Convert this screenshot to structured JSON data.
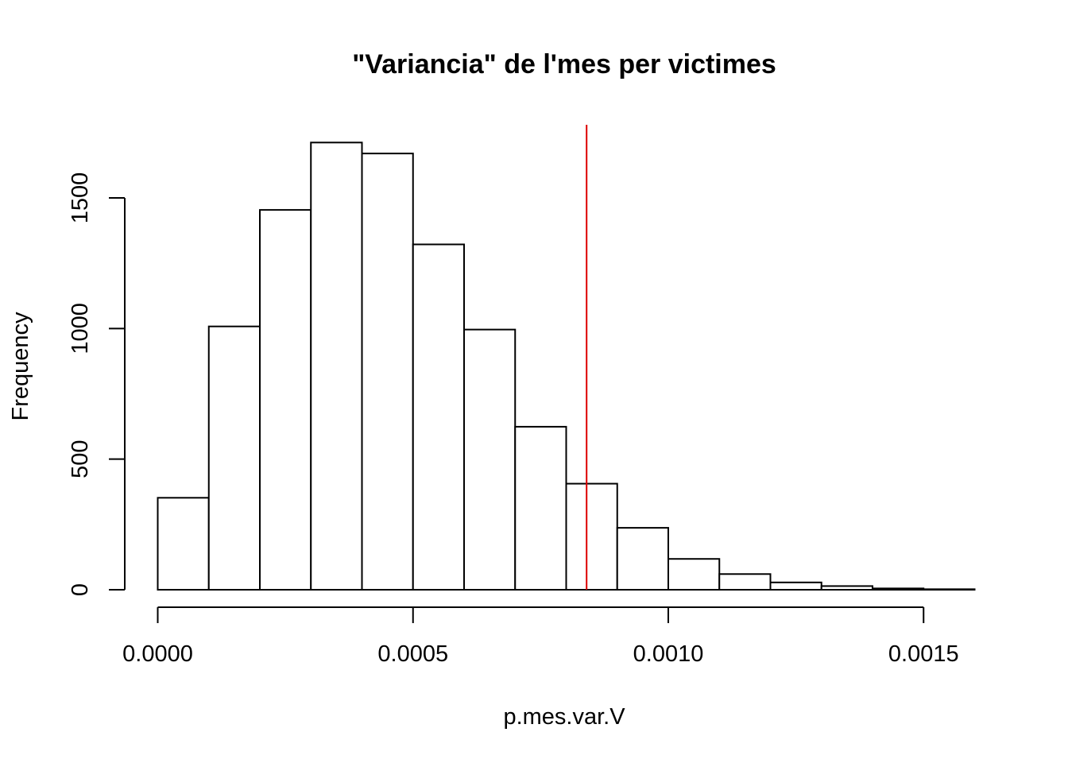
{
  "chart_data": {
    "type": "bar",
    "title": "\"Variancia\" de l'mes per victimes",
    "xlabel": "p.mes.var.V",
    "ylabel": "Frequency",
    "bin_edges": [
      0.0,
      0.0001,
      0.0002,
      0.0003,
      0.0004,
      0.0005,
      0.0006,
      0.0007,
      0.0008,
      0.0009,
      0.001,
      0.0011,
      0.0012,
      0.0013,
      0.0014,
      0.0015,
      0.0016
    ],
    "values": [
      352,
      1008,
      1454,
      1712,
      1670,
      1322,
      996,
      624,
      406,
      237,
      118,
      60,
      28,
      14,
      5,
      2
    ],
    "xlim": [
      0,
      0.0016
    ],
    "ylim": [
      0,
      1780
    ],
    "x_ticks": [
      0,
      0.0005,
      0.001,
      0.0015
    ],
    "x_tick_labels": [
      "0.0000",
      "0.0005",
      "0.0010",
      "0.0015"
    ],
    "y_ticks": [
      0,
      500,
      1000,
      1500
    ],
    "y_tick_labels": [
      "0",
      "500",
      "1000",
      "1500"
    ],
    "reference_line": {
      "x": 0.00084,
      "color": "#dd0000"
    },
    "grid": false
  }
}
